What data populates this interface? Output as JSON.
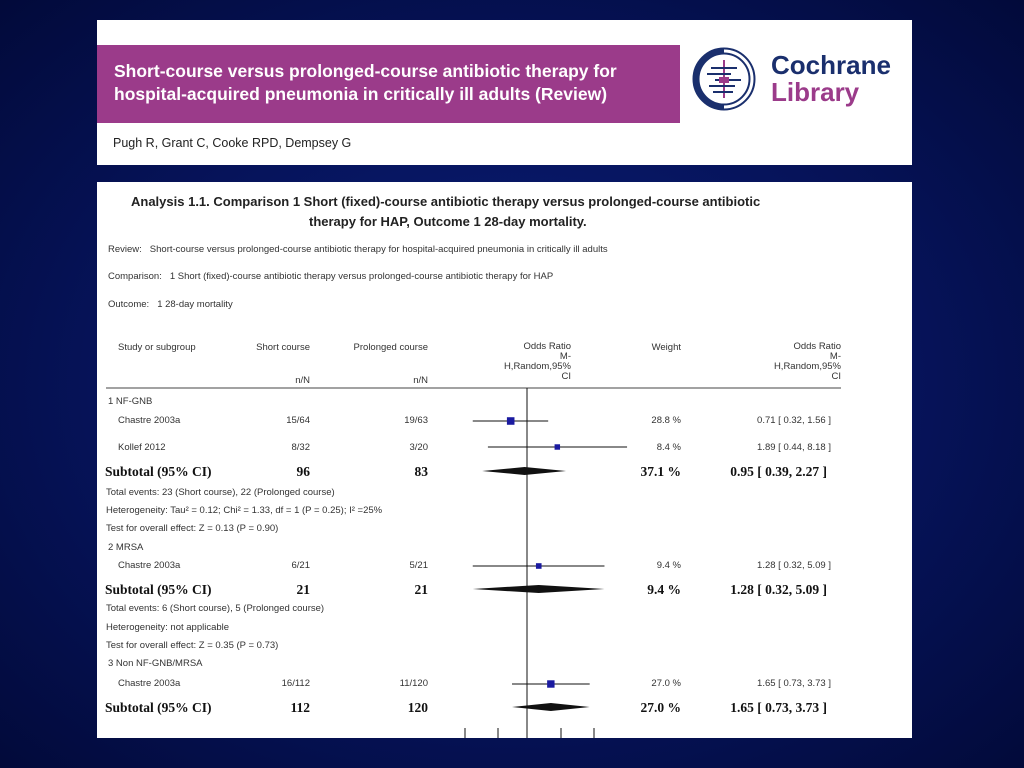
{
  "header": {
    "title_line1": "Short-course versus prolonged-course antibiotic therapy for",
    "title_line2": "hospital-acquired pneumonia in critically ill adults (Review)",
    "logo_line1": "Cochrane",
    "logo_line2": "Library",
    "authors": "Pugh R, Grant C, Cooke RPD, Dempsey G",
    "colors": {
      "banner": "#9b3b8a",
      "logo_navy": "#1a2f6d",
      "background": "#06135a"
    }
  },
  "analysis": {
    "title_line1": "Analysis 1.1.   Comparison 1 Short (fixed)-course antibiotic therapy versus prolonged-course antibiotic",
    "title_line2": "therapy for HAP, Outcome 1 28-day mortality.",
    "review_label": "Review:",
    "review": "Short-course versus prolonged-course antibiotic therapy for hospital-acquired pneumonia in critically ill adults",
    "comparison_label": "Comparison:",
    "comparison": "1 Short (fixed)-course antibiotic therapy versus prolonged-course antibiotic therapy for HAP",
    "outcome_label": "Outcome:",
    "outcome": "1 28-day mortality"
  },
  "table": {
    "col_study": "Study or subgroup",
    "col_short": "Short course",
    "col_prolonged": "Prolonged course",
    "col_or_plot_l1": "Odds Ratio",
    "col_or_plot_l2": "M-",
    "col_or_plot_l3": "H,Random,95%",
    "col_or_plot_l4": "CI",
    "col_weight": "Weight",
    "col_or_l1": "Odds Ratio",
    "col_or_l2": "M-",
    "col_or_l3": "H,Random,95%",
    "col_or_l4": "CI",
    "unit_short": "n/N",
    "unit_prolonged": "n/N",
    "groups": [
      {
        "name": "1 NF-GNB",
        "studies": [
          {
            "study": "Chastre 2003a",
            "short": "15/64",
            "prolonged": "19/63",
            "weight": "28.8 %",
            "ci": "0.71 [ 0.32, 1.56 ]",
            "or": 0.71,
            "lo": 0.32,
            "hi": 1.56,
            "w": 28.8
          },
          {
            "study": "Kollef 2012",
            "short": "8/32",
            "prolonged": "3/20",
            "weight": "8.4 %",
            "ci": "1.89 [ 0.44, 8.18 ]",
            "or": 1.89,
            "lo": 0.44,
            "hi": 8.18,
            "w": 8.4
          }
        ],
        "subtotal": {
          "label": "Subtotal (95% CI)",
          "short": "96",
          "prolonged": "83",
          "weight": "37.1 %",
          "ci": "0.95 [ 0.39, 2.27 ]",
          "or": 0.95,
          "lo": 0.39,
          "hi": 2.27
        },
        "notes": [
          "Total events: 23 (Short course), 22 (Prolonged course)",
          "Heterogeneity: Tau² = 0.12; Chi² = 1.33, df = 1 (P = 0.25); I² =25%",
          "Test for overall effect: Z = 0.13 (P = 0.90)"
        ]
      },
      {
        "name": "2 MRSA",
        "studies": [
          {
            "study": "Chastre 2003a",
            "short": "6/21",
            "prolonged": "5/21",
            "weight": "9.4 %",
            "ci": "1.28 [ 0.32, 5.09 ]",
            "or": 1.28,
            "lo": 0.32,
            "hi": 5.09,
            "w": 9.4
          }
        ],
        "subtotal": {
          "label": "Subtotal (95% CI)",
          "short": "21",
          "prolonged": "21",
          "weight": "9.4 %",
          "ci": "1.28 [ 0.32, 5.09 ]",
          "or": 1.28,
          "lo": 0.32,
          "hi": 5.09
        },
        "notes": [
          "Total events: 6 (Short course), 5 (Prolonged course)",
          "Heterogeneity: not applicable",
          "Test for overall effect: Z = 0.35 (P = 0.73)"
        ]
      },
      {
        "name": "3 Non NF-GNB/MRSA",
        "studies": [
          {
            "study": "Chastre 2003a",
            "short": "16/112",
            "prolonged": "11/120",
            "weight": "27.0 %",
            "ci": "1.65 [ 0.73, 3.73 ]",
            "or": 1.65,
            "lo": 0.73,
            "hi": 3.73,
            "w": 27.0
          }
        ],
        "subtotal": {
          "label": "Subtotal (95% CI)",
          "short": "112",
          "prolonged": "120",
          "weight": "27.0 %",
          "ci": "1.65 [ 0.73, 3.73 ]",
          "or": 1.65,
          "lo": 0.73,
          "hi": 3.73
        },
        "notes": []
      }
    ]
  }
}
